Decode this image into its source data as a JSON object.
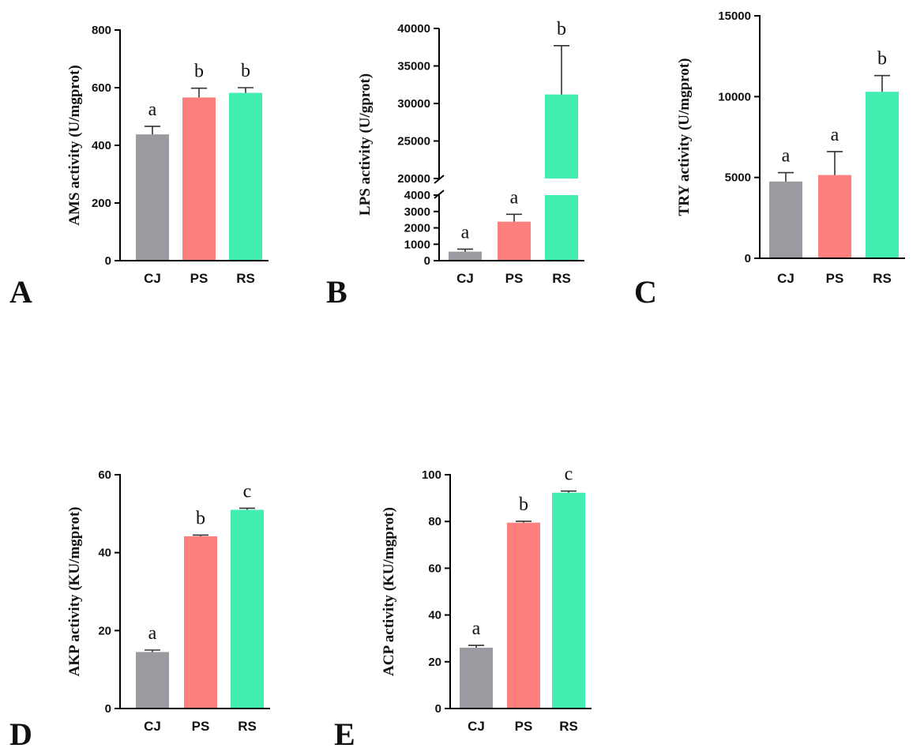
{
  "colors": {
    "CJ": "#9b9aa0",
    "PS": "#fd7f7e",
    "RS": "#42efb0"
  },
  "chart_data": [
    {
      "panel": "A",
      "type": "bar",
      "categories": [
        "CJ",
        "PS",
        "RS"
      ],
      "values": [
        438,
        566,
        582
      ],
      "errors": [
        28,
        32,
        18
      ],
      "significance": [
        "a",
        "b",
        "b"
      ],
      "ylabel": "AMS activity (U/mgprot)",
      "ylim": [
        0,
        800
      ],
      "yticks": [
        0,
        200,
        400,
        600,
        800
      ]
    },
    {
      "panel": "B",
      "type": "bar",
      "categories": [
        "CJ",
        "PS",
        "RS"
      ],
      "values": [
        550,
        2380,
        31200
      ],
      "errors": [
        150,
        450,
        6500
      ],
      "significance": [
        "a",
        "a",
        "b"
      ],
      "ylabel": "LPS activity (U/gprot)",
      "axis_break": [
        4000,
        20000
      ],
      "ylim": [
        0,
        40000
      ],
      "yticks": [
        0,
        1000,
        2000,
        3000,
        4000,
        20000,
        25000,
        30000,
        35000,
        40000
      ]
    },
    {
      "panel": "C",
      "type": "bar",
      "categories": [
        "CJ",
        "PS",
        "RS"
      ],
      "values": [
        4750,
        5150,
        10300
      ],
      "errors": [
        550,
        1450,
        1000
      ],
      "significance": [
        "a",
        "a",
        "b"
      ],
      "ylabel": "TRY activity (U/mgprot)",
      "ylim": [
        0,
        15000
      ],
      "yticks": [
        0,
        5000,
        10000,
        15000
      ]
    },
    {
      "panel": "D",
      "type": "bar",
      "categories": [
        "CJ",
        "PS",
        "RS"
      ],
      "values": [
        14.5,
        44.2,
        51
      ],
      "errors": [
        0.5,
        0.3,
        0.4
      ],
      "significance": [
        "a",
        "b",
        "c"
      ],
      "ylabel": "AKP activity (KU/mgprot)",
      "ylim": [
        0,
        60
      ],
      "yticks": [
        0,
        20,
        40,
        60
      ]
    },
    {
      "panel": "E",
      "type": "bar",
      "categories": [
        "CJ",
        "PS",
        "RS"
      ],
      "values": [
        26,
        79.5,
        92.3
      ],
      "errors": [
        1,
        0.6,
        0.7
      ],
      "significance": [
        "a",
        "b",
        "c"
      ],
      "ylabel": "ACP activity (KU/mgprot)",
      "ylim": [
        0,
        100
      ],
      "yticks": [
        0,
        20,
        40,
        60,
        80,
        100
      ]
    }
  ]
}
